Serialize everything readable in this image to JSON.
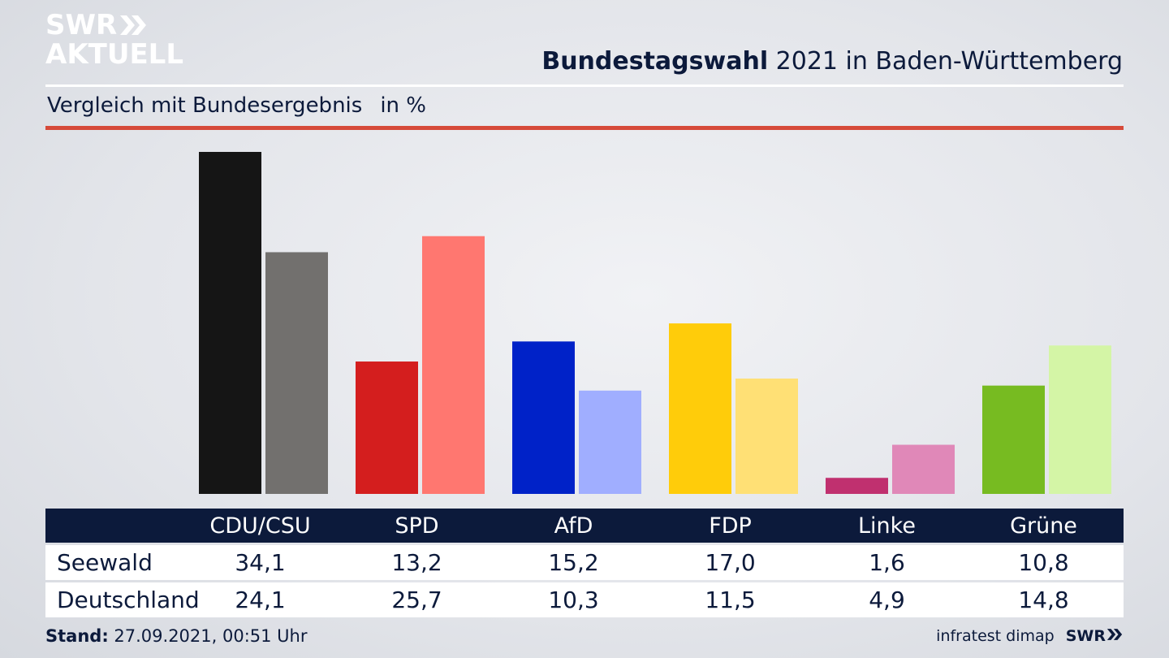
{
  "brand": {
    "logo_line1": "SWR",
    "logo_line2": "AKTUELL",
    "logo_icon": "double-chevron-icon"
  },
  "header": {
    "title_bold": "Bundestagswahl",
    "title_rest": " 2021 in Baden-Württemberg"
  },
  "subtitle": {
    "text": "Vergleich mit Bundesergebnis",
    "unit": "in %"
  },
  "colors": {
    "navy": "#0c1a3b",
    "accent_red": "#d64a3a",
    "parties_primary": [
      "#151515",
      "#d41e1e",
      "#0022c8",
      "#ffcc0a",
      "#c0306f",
      "#77bb21"
    ],
    "parties_secondary": [
      "#72706e",
      "#ff7770",
      "#a0aeff",
      "#ffe075",
      "#e088b8",
      "#d4f5a6"
    ]
  },
  "chart_data": {
    "type": "bar",
    "categories": [
      "CDU/CSU",
      "SPD",
      "AfD",
      "FDP",
      "Linke",
      "Grüne"
    ],
    "series": [
      {
        "name": "Seewald",
        "values": [
          34.1,
          13.2,
          15.2,
          17.0,
          1.6,
          10.8
        ]
      },
      {
        "name": "Deutschland",
        "values": [
          24.1,
          25.7,
          10.3,
          11.5,
          4.9,
          14.8
        ]
      }
    ],
    "value_labels": [
      [
        "34,1",
        "13,2",
        "15,2",
        "17,0",
        "1,6",
        "10,8"
      ],
      [
        "24,1",
        "25,7",
        "10,3",
        "11,5",
        "4,9",
        "14,8"
      ]
    ],
    "ylim": [
      0,
      34.1
    ],
    "grid": false,
    "legend": "table-below"
  },
  "footer": {
    "stand_label": "Stand:",
    "stand_value": " 27.09.2021, 00:51 Uhr",
    "source": "infratest dimap",
    "brand": "SWR"
  }
}
